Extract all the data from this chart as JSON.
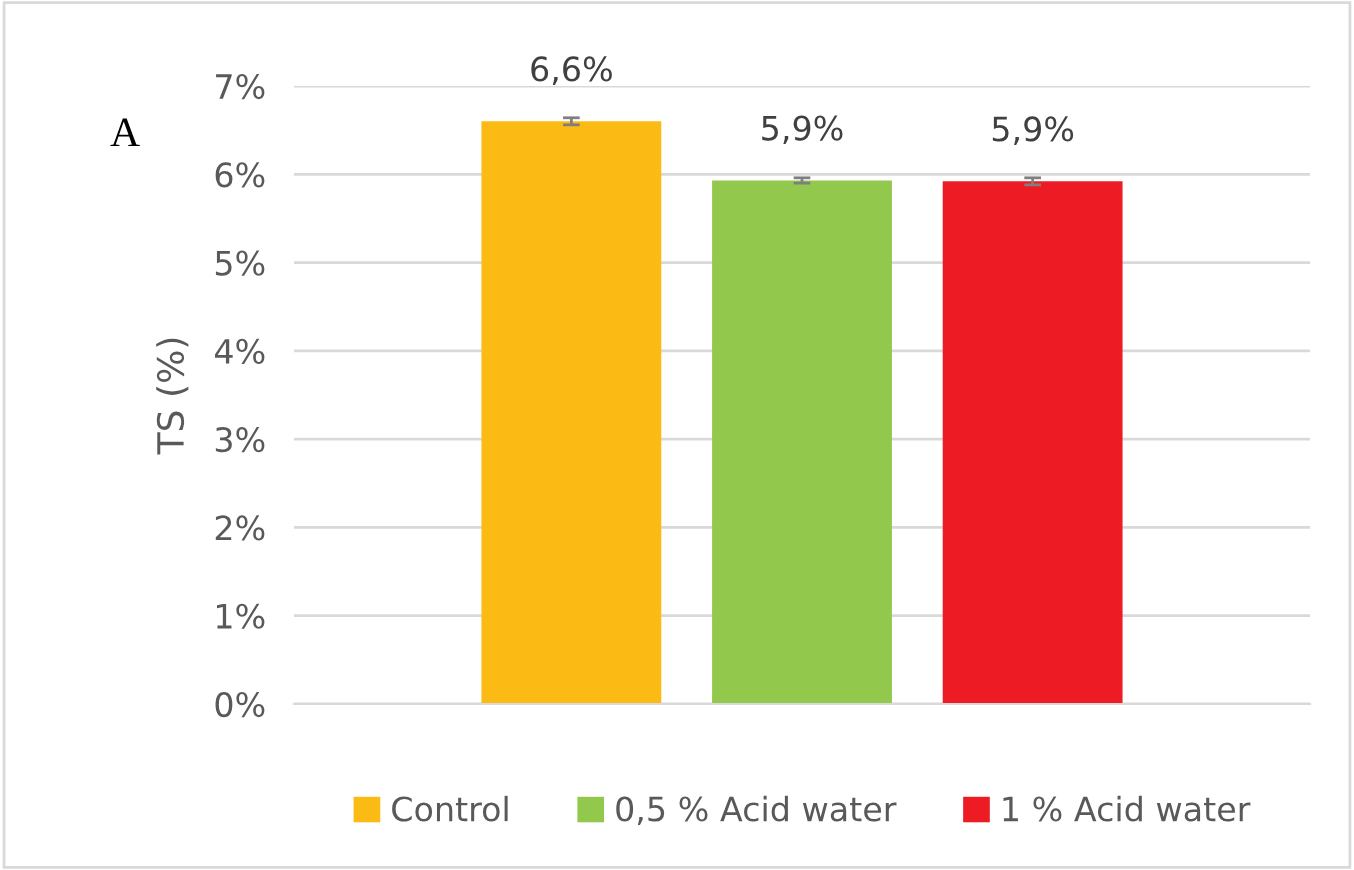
{
  "chart_data": {
    "type": "bar",
    "ylabel": "TS (%)",
    "annotations": [
      "A"
    ],
    "categories": [
      null
    ],
    "series": [
      {
        "name": "Control",
        "color": "#fbba14",
        "values": [
          6.6
        ],
        "errors": [
          0.04
        ],
        "value_labels": [
          "6,6%"
        ]
      },
      {
        "name": "0,5 % Acid water",
        "color": "#92c84c",
        "values": [
          5.93
        ],
        "errors": [
          0.03
        ],
        "value_labels": [
          "5,9%"
        ]
      },
      {
        "name": "1 % Acid water",
        "color": "#ed1c24",
        "values": [
          5.92
        ],
        "errors": [
          0.04
        ],
        "value_labels": [
          "5,9%"
        ]
      }
    ],
    "ylim": [
      0,
      7
    ],
    "yticks": [
      {
        "value": 0,
        "label": "0%"
      },
      {
        "value": 1,
        "label": "1%"
      },
      {
        "value": 2,
        "label": "2%"
      },
      {
        "value": 3,
        "label": "3%"
      },
      {
        "value": 4,
        "label": "4%"
      },
      {
        "value": 5,
        "label": "5%"
      },
      {
        "value": 6,
        "label": "6%"
      },
      {
        "value": 7,
        "label": "7%"
      }
    ],
    "grid": "y",
    "legend": "bottom"
  }
}
